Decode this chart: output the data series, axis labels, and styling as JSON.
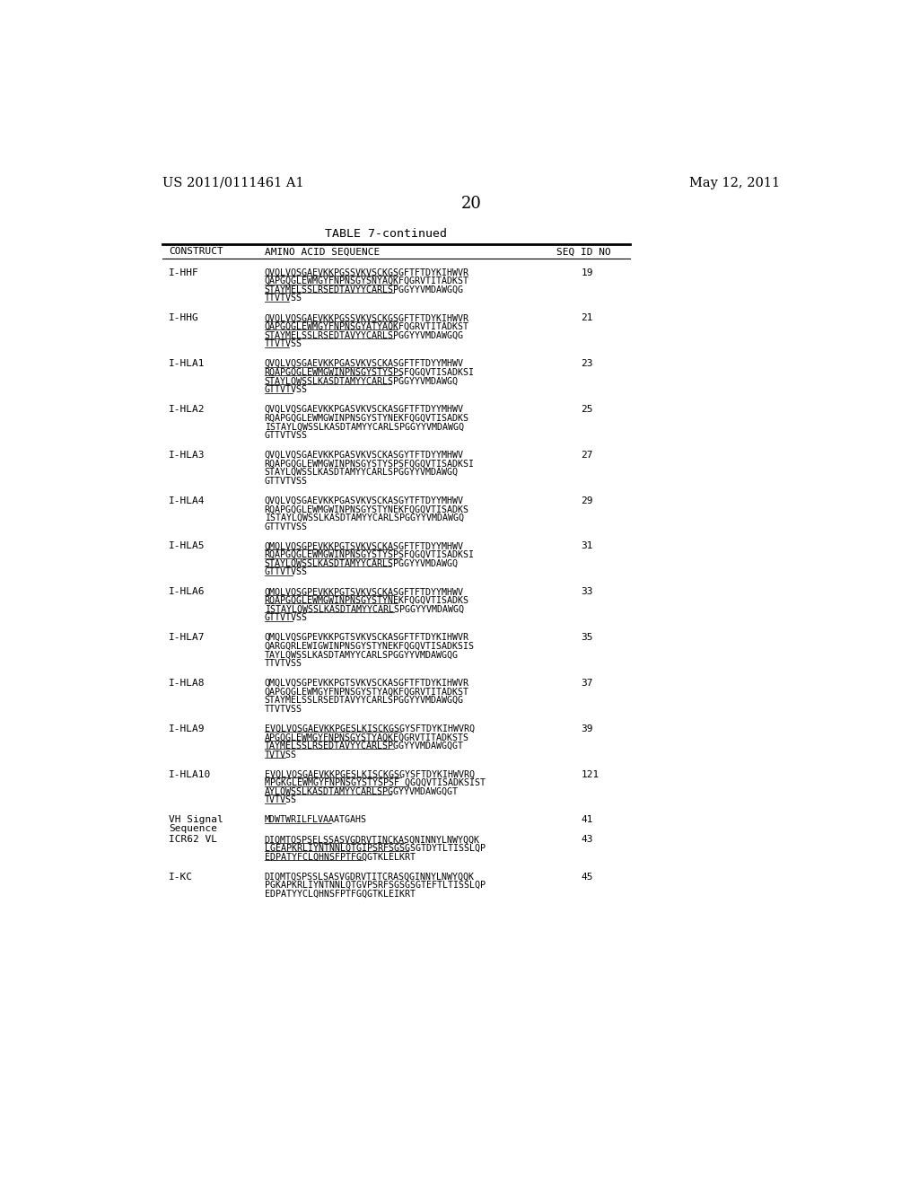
{
  "header_left": "US 2011/0111461 A1",
  "header_right": "May 12, 2011",
  "page_number": "20",
  "table_title": "TABLE 7-continued",
  "background_color": "#ffffff",
  "text_color": "#000000",
  "rows": [
    {
      "construct": "I-HHF",
      "seq_lines": [
        "QVQLVQSGAEVKKPGSSVKVSCKGSGFTFTDYKIHWVR",
        "QAPGQGLEWMGYFNPNSGYSNYAQKFQGRVTITADKST",
        "STAYMELSSLRSEDTAVYYCARLSPGGYYVMDAWGQG",
        "TTVTVSS"
      ],
      "underline": true,
      "seq_id": "19"
    },
    {
      "construct": "I-HHG",
      "seq_lines": [
        "QVQLVQSGAEVKKPGSSVKVSCKGSGFTFTDYKIHWVR",
        "QAPGQGLEWMGYFNPNSGYATYAQKFQGRVTITADKST",
        "STAYMELSSLRSEDTAVYYCARLSPGGYYVMDAWGQG",
        "TTVTVSS"
      ],
      "underline": true,
      "seq_id": "21"
    },
    {
      "construct": "I-HLA1",
      "seq_lines": [
        "QVQLVQSGAEVKKPGASVKVSCKASGFTFTDYYMHWV",
        "RQAPGQGLEWMGWINPNSGYSTYSPSFQGQVTISADKSI",
        "STAYLQWSSLKASDTAMYYCARLSPGGYYVMDAWGQ",
        "GTTVTVSS"
      ],
      "underline": true,
      "seq_id": "23"
    },
    {
      "construct": "I-HLA2",
      "seq_lines": [
        "QVQLVQSGAEVKKPGASVKVSCKASGFTFTDYYMHWV",
        "RQAPGQGLEWMGWINPNSGYSTYNEKFQGQVTISADKS",
        "ISTAYLQWSSLKASDTAMYYCARLSPGGYYVMDAWGQ",
        "GTTVTVSS"
      ],
      "underline": false,
      "seq_id": "25"
    },
    {
      "construct": "I-HLA3",
      "seq_lines": [
        "QVQLVQSGAEVKKPGASVKVSCKASGYTFTDYYMHWV",
        "RQAPGQGLEWMGWINPNSGYSTYSPSFQGQVTISADKSI",
        "STAYLQWSSLKASDTAMYYCARLSPGGYYVMDAWGQ",
        "GTTVTVSS"
      ],
      "underline": false,
      "seq_id": "27"
    },
    {
      "construct": "I-HLA4",
      "seq_lines": [
        "QVQLVQSGAEVKKPGASVKVSCKASGYTFTDYYMHWV",
        "RQAPGQGLEWMGWINPNSGYSTYNEKFQGQVTISADKS",
        "ISTAYLQWSSLKASDTAMYYCARLSPGGYYVMDAWGQ",
        "GTTVTVSS"
      ],
      "underline": false,
      "seq_id": "29"
    },
    {
      "construct": "I-HLA5",
      "seq_lines": [
        "QMQLVQSGPEVKKPGTSVKVSCKASGFTFTDYYMHWV",
        "RQAPGQGLEWMGWINPNSGYSTYSPSFQGQVTISADKSI",
        "STAYLQWSSLKASDTAMYYCARLSPGGYYVMDAWGQ",
        "GTTVTVSS"
      ],
      "underline": true,
      "seq_id": "31"
    },
    {
      "construct": "I-HLA6",
      "seq_lines": [
        "QMQLVQSGPEVKKPGTSVKVSCKASGFTFTDYYMHWV",
        "RQAPGQGLEWMGWINPNSGYSTYNEKFQGQVTISADKS",
        "ISTAYLQWSSLKASDTAMYYCARLSPGGYYVMDAWGQ",
        "GTTVTVSS"
      ],
      "underline": true,
      "seq_id": "33"
    },
    {
      "construct": "I-HLA7",
      "seq_lines": [
        "QMQLVQSGPEVKKPGTSVKVSCKASGFTFTDYKIHWVR",
        "QARGQRLEWIGWINPNSGYSTYNEKFQGQVTISADKSIS",
        "TAYLQWSSLKASDTAMYYCARLSPGGYYVMDAWGQG",
        "TTVTVSS"
      ],
      "underline": false,
      "seq_id": "35"
    },
    {
      "construct": "I-HLA8",
      "seq_lines": [
        "QMQLVQSGPEVKKPGTSVKVSCKASGFTFTDYKIHWVR",
        "QAPGQGLEWMGYFNPNSGYSTYAQKFQGRVTITADKST",
        "STAYMELSSLRSEDTAVYYCARLSPGGYYVMDAWGQG",
        "TTVTVSS"
      ],
      "underline": false,
      "seq_id": "37"
    },
    {
      "construct": "I-HLA9",
      "seq_lines": [
        "EVQLVQSGAEVKKPGESLKISCKGSGYSFTDYKIHWVRQ",
        "APGQGLEWMGYFNPNSGYSTYAQKFQGRVTITADKSTS",
        "TAYMELSSLRSEDTAVYYCARLSPGGYYVMDAWGQGT",
        "TVTVSS"
      ],
      "underline": true,
      "seq_id": "39"
    },
    {
      "construct": "I-HLA10",
      "seq_lines": [
        "EVQLVQSGAEVKKPGESLKISCKGSGYSFTDYKIHWVRQ",
        "MPGKGLEWMGYFNPNSGYSTYSPSF QGQQVTISADKSIST",
        "AYLQWSSLKASDTAMYYCARLSPGGYYVMDAWGQGT",
        "TVTVSS"
      ],
      "underline": true,
      "seq_id": "121"
    },
    {
      "construct": "VH Signal\nSequence",
      "seq_lines": [
        "MDWTWRILFLVAAATGAHS"
      ],
      "underline": true,
      "seq_id": "41"
    },
    {
      "construct": "ICR62 VL",
      "seq_lines": [
        "DIQMTQSPSELSSASVGDRVTINCKASQNINNYLNWYQQK",
        "LGEAPKRLIYNTNNLQTGIPSRFSGSGSGTDYTLTISSLQP",
        "EDPATYFCLQHNSFPTFGQGTKLELKRT"
      ],
      "underline": true,
      "seq_id": "43"
    },
    {
      "construct": "I-KC",
      "seq_lines": [
        "DIQMTQSPSSLSASVGDRVTITCRASQGINNYLNWYQQK",
        "PGKAPKRLIYNTNNLQTGVPSRFSGSGSGTEFTLTISSLQP",
        "EDPATYYCLQHNSFPTFGQGTKLEIKRT"
      ],
      "underline": false,
      "seq_id": "45"
    }
  ]
}
